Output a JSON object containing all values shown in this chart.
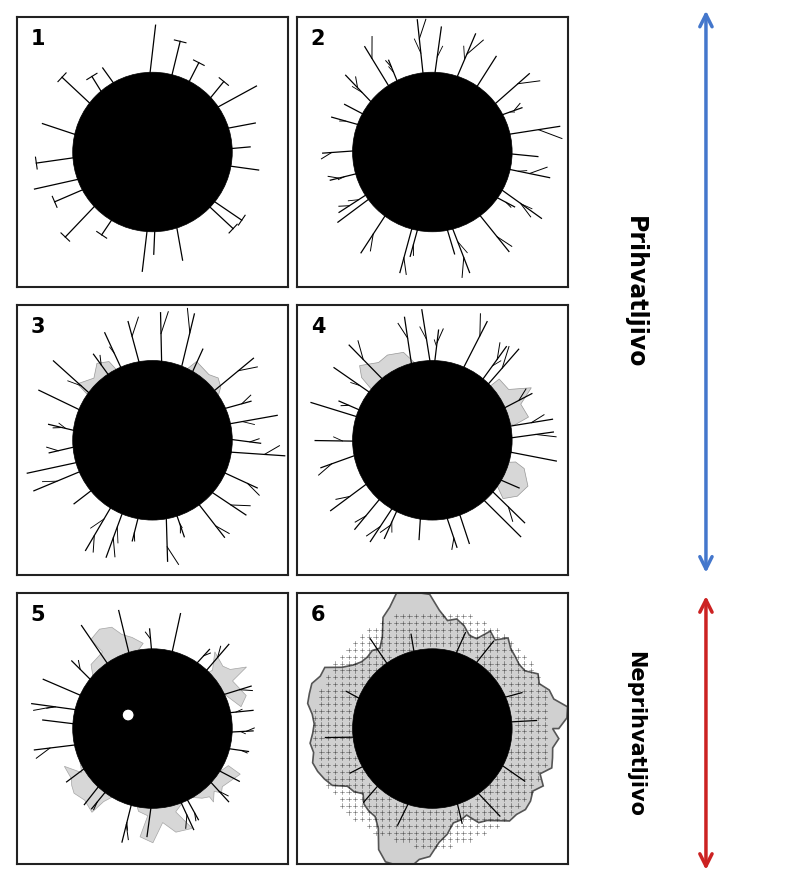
{
  "fig_width": 7.85,
  "fig_height": 8.87,
  "dpi": 100,
  "bg_color": "#ffffff",
  "panel_labels": [
    "1",
    "2",
    "3",
    "4",
    "5",
    "6"
  ],
  "label_prihvatljivo": "Prihvatljivo",
  "label_neprihvatljivo": "Neprihvatljivo",
  "arrow_color_blue": "#4477cc",
  "arrow_color_red": "#cc2222",
  "text_color": "#000000",
  "panel_bg": "#ffffff",
  "circle_color": "#000000",
  "crack_color": "#000000",
  "spall_light": "#d0d0d0",
  "spall_dark": "#b0b0b0"
}
